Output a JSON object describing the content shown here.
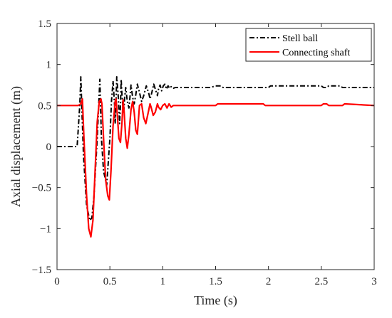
{
  "chart_data": {
    "type": "line",
    "title": "",
    "xlabel": "Time (s)",
    "ylabel": "Axial displacement (m)",
    "xlim": [
      0,
      3
    ],
    "ylim": [
      -1.5,
      1.5
    ],
    "xticks": [
      0,
      0.5,
      1,
      1.5,
      2,
      2.5,
      3
    ],
    "xtick_labels": [
      "0",
      "0.5",
      "1",
      "1.5",
      "2",
      "2.5",
      "3"
    ],
    "yticks": [
      -1.5,
      -1,
      -0.5,
      0,
      0.5,
      1,
      1.5
    ],
    "ytick_labels": [
      "−1.5",
      "−1",
      "−0.5",
      "0",
      "0.5",
      "1",
      "1.5"
    ],
    "grid": false,
    "legend_position": "top-right",
    "series": [
      {
        "name": "Stell ball",
        "color": "#000000",
        "dash": "dash-dot",
        "x": [
          0,
          0.19,
          0.2,
          0.215,
          0.225,
          0.235,
          0.25,
          0.28,
          0.31,
          0.33,
          0.35,
          0.38,
          0.405,
          0.41,
          0.42,
          0.44,
          0.47,
          0.5,
          0.515,
          0.53,
          0.545,
          0.55,
          0.557,
          0.565,
          0.58,
          0.592,
          0.6,
          0.607,
          0.615,
          0.625,
          0.632,
          0.64,
          0.65,
          0.665,
          0.68,
          0.69,
          0.7,
          0.715,
          0.73,
          0.745,
          0.76,
          0.78,
          0.8,
          0.82,
          0.845,
          0.87,
          0.88,
          0.895,
          0.915,
          0.935,
          0.95,
          0.96,
          0.975,
          0.99,
          1.005,
          1.02,
          1.035,
          1.05,
          1.065,
          1.08,
          1.1,
          1.12,
          1.14,
          1.2,
          1.3,
          1.45,
          1.5,
          1.55,
          1.57,
          2.0,
          2.02,
          2.5,
          2.52,
          2.55,
          2.57,
          2.68,
          2.7,
          2.98,
          3.0
        ],
        "y": [
          0,
          0,
          0.2,
          0.5,
          0.85,
          0.45,
          -0.1,
          -0.72,
          -0.9,
          -0.87,
          -0.6,
          0.1,
          0.82,
          0.6,
          0.1,
          -0.3,
          -0.47,
          0.1,
          0.55,
          0.8,
          0.5,
          0.28,
          0.5,
          0.85,
          0.6,
          0.28,
          0.5,
          0.82,
          0.62,
          0.45,
          0.42,
          0.6,
          0.72,
          0.55,
          0.47,
          0.6,
          0.75,
          0.6,
          0.52,
          0.63,
          0.76,
          0.66,
          0.55,
          0.62,
          0.74,
          0.64,
          0.58,
          0.65,
          0.76,
          0.68,
          0.62,
          0.7,
          0.75,
          0.68,
          0.74,
          0.76,
          0.7,
          0.74,
          0.71,
          0.73,
          0.71,
          0.72,
          0.72,
          0.72,
          0.72,
          0.72,
          0.74,
          0.74,
          0.72,
          0.72,
          0.74,
          0.74,
          0.72,
          0.72,
          0.74,
          0.74,
          0.72,
          0.72,
          0.72
        ]
      },
      {
        "name": "Connecting shaft",
        "color": "#ff0000",
        "dash": "solid",
        "x": [
          0,
          0.001,
          0.2,
          0.225,
          0.24,
          0.255,
          0.28,
          0.3,
          0.32,
          0.34,
          0.36,
          0.38,
          0.4,
          0.415,
          0.425,
          0.44,
          0.46,
          0.48,
          0.495,
          0.51,
          0.53,
          0.55,
          0.558,
          0.57,
          0.585,
          0.6,
          0.615,
          0.625,
          0.635,
          0.65,
          0.665,
          0.68,
          0.7,
          0.715,
          0.73,
          0.745,
          0.76,
          0.77,
          0.78,
          0.8,
          0.82,
          0.84,
          0.86,
          0.88,
          0.89,
          0.91,
          0.93,
          0.95,
          0.96,
          0.98,
          1.0,
          1.02,
          1.04,
          1.06,
          1.08,
          1.1,
          1.15,
          1.5,
          1.52,
          1.95,
          1.97,
          2.5,
          2.52,
          2.55,
          2.57,
          2.7,
          2.72,
          3.0
        ],
        "y": [
          0.5,
          0.5,
          0.5,
          0.52,
          0.58,
          0.1,
          -0.6,
          -1.0,
          -1.1,
          -0.9,
          -0.3,
          0.3,
          0.55,
          0.58,
          0.52,
          0.1,
          -0.4,
          -0.6,
          -0.65,
          -0.3,
          0.25,
          0.55,
          0.58,
          0.4,
          0.1,
          0.05,
          0.3,
          0.57,
          0.42,
          0.1,
          -0.02,
          0.15,
          0.45,
          0.55,
          0.42,
          0.2,
          0.15,
          0.32,
          0.5,
          0.52,
          0.35,
          0.28,
          0.4,
          0.52,
          0.48,
          0.38,
          0.42,
          0.52,
          0.48,
          0.45,
          0.5,
          0.52,
          0.47,
          0.52,
          0.48,
          0.5,
          0.5,
          0.5,
          0.52,
          0.52,
          0.5,
          0.5,
          0.52,
          0.52,
          0.5,
          0.5,
          0.52,
          0.5
        ]
      }
    ]
  }
}
